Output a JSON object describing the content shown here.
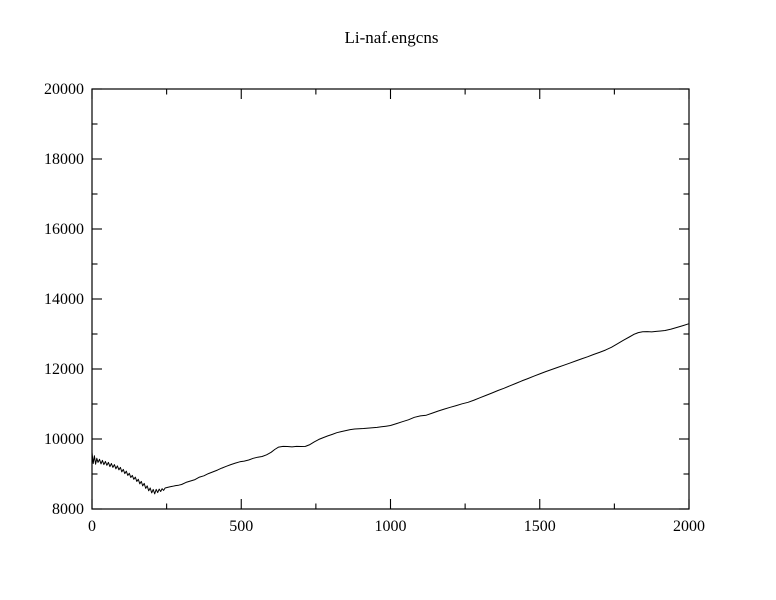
{
  "window": {
    "background": "#ffffff"
  },
  "chart_data": {
    "type": "line",
    "title": "Li-naf.engcns",
    "xlabel": "",
    "ylabel": "",
    "xlim": [
      0,
      2000
    ],
    "ylim": [
      8000,
      20000
    ],
    "grid": false,
    "legend_position": "none",
    "axis_color": "#000000",
    "line_color": "#000000",
    "background_color": "#ffffff",
    "x_major_ticks": [
      0,
      500,
      1000,
      1500,
      2000
    ],
    "x_major_labels": [
      "0",
      "500",
      "1000",
      "1500",
      "2000"
    ],
    "x_minor_ticks": [
      250,
      750,
      1250,
      1750
    ],
    "y_major_ticks": [
      8000,
      10000,
      12000,
      14000,
      16000,
      18000,
      20000
    ],
    "y_major_labels": [
      "8000",
      "10000",
      "12000",
      "14000",
      "16000",
      "18000",
      "20000"
    ],
    "y_minor_ticks": [
      9000,
      11000,
      13000,
      15000,
      17000,
      19000
    ],
    "series": [
      {
        "name": "Li-naf.engcns",
        "points": [
          [
            0,
            9620
          ],
          [
            4,
            9300
          ],
          [
            8,
            9520
          ],
          [
            12,
            9280
          ],
          [
            16,
            9450
          ],
          [
            20,
            9330
          ],
          [
            25,
            9420
          ],
          [
            30,
            9290
          ],
          [
            35,
            9390
          ],
          [
            40,
            9270
          ],
          [
            45,
            9360
          ],
          [
            50,
            9250
          ],
          [
            55,
            9330
          ],
          [
            60,
            9210
          ],
          [
            65,
            9300
          ],
          [
            70,
            9190
          ],
          [
            75,
            9270
          ],
          [
            80,
            9150
          ],
          [
            85,
            9230
          ],
          [
            90,
            9120
          ],
          [
            95,
            9190
          ],
          [
            100,
            9060
          ],
          [
            105,
            9130
          ],
          [
            110,
            9010
          ],
          [
            115,
            9080
          ],
          [
            120,
            8960
          ],
          [
            125,
            9020
          ],
          [
            130,
            8900
          ],
          [
            135,
            8960
          ],
          [
            140,
            8850
          ],
          [
            145,
            8910
          ],
          [
            150,
            8790
          ],
          [
            155,
            8850
          ],
          [
            160,
            8720
          ],
          [
            165,
            8790
          ],
          [
            170,
            8660
          ],
          [
            175,
            8730
          ],
          [
            180,
            8590
          ],
          [
            185,
            8660
          ],
          [
            190,
            8520
          ],
          [
            195,
            8600
          ],
          [
            200,
            8460
          ],
          [
            205,
            8560
          ],
          [
            210,
            8430
          ],
          [
            215,
            8560
          ],
          [
            220,
            8470
          ],
          [
            225,
            8570
          ],
          [
            230,
            8500
          ],
          [
            235,
            8580
          ],
          [
            240,
            8530
          ],
          [
            245,
            8600
          ],
          [
            250,
            8610
          ],
          [
            260,
            8630
          ],
          [
            270,
            8650
          ],
          [
            280,
            8670
          ],
          [
            290,
            8680
          ],
          [
            300,
            8700
          ],
          [
            315,
            8760
          ],
          [
            330,
            8800
          ],
          [
            345,
            8840
          ],
          [
            360,
            8910
          ],
          [
            375,
            8950
          ],
          [
            390,
            9010
          ],
          [
            405,
            9060
          ],
          [
            420,
            9110
          ],
          [
            435,
            9170
          ],
          [
            450,
            9220
          ],
          [
            465,
            9270
          ],
          [
            480,
            9310
          ],
          [
            495,
            9350
          ],
          [
            510,
            9370
          ],
          [
            525,
            9400
          ],
          [
            540,
            9450
          ],
          [
            555,
            9480
          ],
          [
            570,
            9500
          ],
          [
            585,
            9550
          ],
          [
            600,
            9620
          ],
          [
            612,
            9700
          ],
          [
            625,
            9770
          ],
          [
            640,
            9790
          ],
          [
            655,
            9785
          ],
          [
            670,
            9775
          ],
          [
            685,
            9790
          ],
          [
            700,
            9785
          ],
          [
            715,
            9790
          ],
          [
            730,
            9840
          ],
          [
            745,
            9920
          ],
          [
            760,
            9990
          ],
          [
            775,
            10040
          ],
          [
            790,
            10090
          ],
          [
            805,
            10130
          ],
          [
            820,
            10180
          ],
          [
            835,
            10210
          ],
          [
            850,
            10240
          ],
          [
            865,
            10270
          ],
          [
            880,
            10285
          ],
          [
            895,
            10295
          ],
          [
            910,
            10300
          ],
          [
            925,
            10310
          ],
          [
            940,
            10320
          ],
          [
            955,
            10330
          ],
          [
            970,
            10350
          ],
          [
            985,
            10365
          ],
          [
            1000,
            10385
          ],
          [
            1020,
            10440
          ],
          [
            1040,
            10495
          ],
          [
            1060,
            10550
          ],
          [
            1080,
            10620
          ],
          [
            1100,
            10660
          ],
          [
            1120,
            10680
          ],
          [
            1140,
            10740
          ],
          [
            1160,
            10800
          ],
          [
            1180,
            10855
          ],
          [
            1200,
            10905
          ],
          [
            1220,
            10955
          ],
          [
            1240,
            11005
          ],
          [
            1260,
            11050
          ],
          [
            1280,
            11110
          ],
          [
            1300,
            11180
          ],
          [
            1320,
            11245
          ],
          [
            1340,
            11315
          ],
          [
            1360,
            11385
          ],
          [
            1380,
            11450
          ],
          [
            1400,
            11520
          ],
          [
            1420,
            11590
          ],
          [
            1440,
            11660
          ],
          [
            1460,
            11725
          ],
          [
            1480,
            11795
          ],
          [
            1500,
            11860
          ],
          [
            1520,
            11925
          ],
          [
            1540,
            11985
          ],
          [
            1560,
            12045
          ],
          [
            1580,
            12105
          ],
          [
            1600,
            12165
          ],
          [
            1620,
            12230
          ],
          [
            1640,
            12290
          ],
          [
            1660,
            12350
          ],
          [
            1680,
            12415
          ],
          [
            1700,
            12475
          ],
          [
            1720,
            12540
          ],
          [
            1740,
            12620
          ],
          [
            1760,
            12720
          ],
          [
            1780,
            12820
          ],
          [
            1800,
            12915
          ],
          [
            1815,
            12990
          ],
          [
            1830,
            13040
          ],
          [
            1845,
            13065
          ],
          [
            1860,
            13070
          ],
          [
            1875,
            13060
          ],
          [
            1890,
            13075
          ],
          [
            1905,
            13085
          ],
          [
            1920,
            13100
          ],
          [
            1940,
            13140
          ],
          [
            1960,
            13190
          ],
          [
            1980,
            13240
          ],
          [
            2000,
            13295
          ]
        ]
      }
    ]
  }
}
